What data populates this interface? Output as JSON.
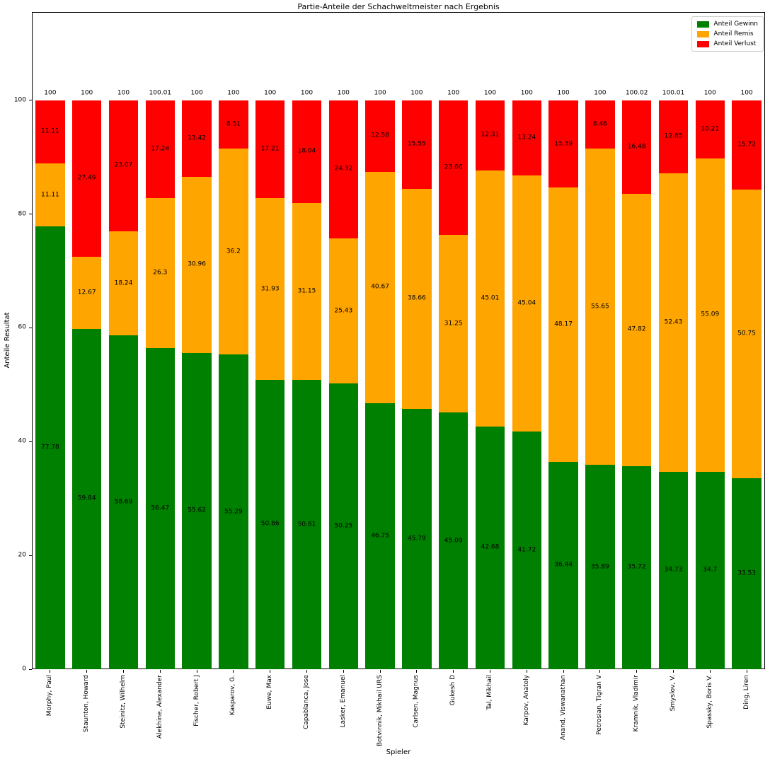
{
  "chart_data": {
    "type": "bar",
    "stacked": true,
    "title": "Partie-Anteile der Schachweltmeister nach Ergebnis",
    "xlabel": "Spieler",
    "ylabel": "Anteile Resultat",
    "ylim": [
      0,
      115.5
    ],
    "yticks": [
      0,
      20,
      40,
      60,
      80,
      100
    ],
    "grid": false,
    "legend_position": "upper right",
    "categories": [
      "Morphy, Paul",
      "Staunton, Howard",
      "Steinitz, Wilhelm",
      "Alekhine, Alexander",
      "Fischer, Robert J",
      "Kasparov, G.",
      "Euwe, Max",
      "Capablanca, Jose",
      "Lasker, Emanuel",
      "Botvinnik, Mikhail URS",
      "Carlsen, Magnus",
      "Gukesh D",
      "Tal, Mikhail",
      "Karpov, Anatoly",
      "Anand, Viswanathan",
      "Petrosian, Tigran V",
      "Kramnik, Vladimir",
      "Smyslov, V.",
      "Spassky, Boris V.",
      "Ding, Liren"
    ],
    "series": [
      {
        "name": "Anteil Gewinn",
        "color": "#008000",
        "values": [
          77.78,
          59.84,
          58.69,
          56.47,
          55.62,
          55.29,
          50.86,
          50.81,
          50.25,
          46.75,
          45.79,
          45.09,
          42.68,
          41.72,
          36.44,
          35.89,
          35.72,
          34.73,
          34.7,
          33.53
        ]
      },
      {
        "name": "Anteil Remis",
        "color": "#FFA500",
        "values": [
          11.11,
          12.67,
          18.24,
          26.3,
          30.96,
          36.2,
          31.93,
          31.15,
          25.43,
          40.67,
          38.66,
          31.25,
          45.01,
          45.04,
          48.17,
          55.65,
          47.82,
          52.43,
          55.09,
          50.75
        ]
      },
      {
        "name": "Anteil Verlust",
        "color": "#FF0000",
        "values": [
          11.11,
          27.49,
          23.07,
          17.24,
          13.42,
          8.51,
          17.21,
          18.04,
          24.32,
          12.58,
          15.55,
          23.66,
          12.31,
          13.24,
          15.39,
          8.46,
          16.48,
          12.85,
          10.21,
          15.72
        ]
      }
    ],
    "totals": [
      "100",
      "100",
      "100",
      "100.01",
      "100",
      "100",
      "100",
      "100",
      "100",
      "100",
      "100",
      "100",
      "100",
      "100",
      "100",
      "100",
      "100.02",
      "100.01",
      "100",
      "100"
    ]
  }
}
